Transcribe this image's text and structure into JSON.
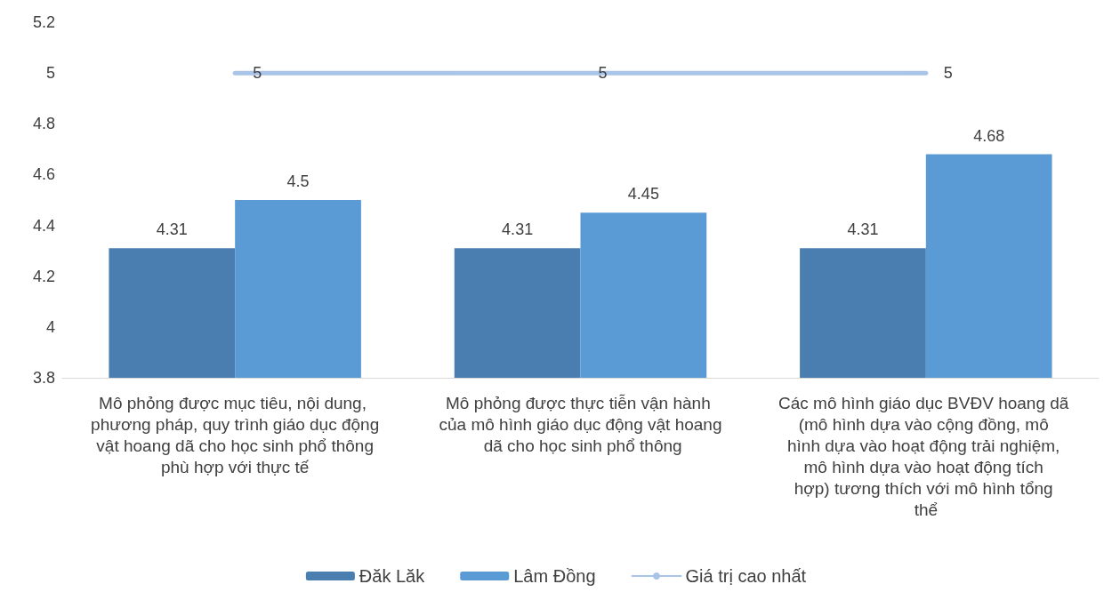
{
  "chart_data": {
    "type": "bar",
    "categories": [
      "Mô phỏng được mục tiêu, nội dung, phương pháp, quy trình giáo dục động vật hoang dã cho học sinh phổ thông phù hợp với thực tế",
      "Mô phỏng được thực tiễn vận hành của mô hình giáo dục động vật hoang dã cho học sinh phổ thông",
      "Các mô hình giáo dục BVĐV hoang dã (mô hình dựa vào cộng đồng, mô hình dựa vào hoạt động trải nghiệm, mô hình dựa vào hoạt động tích hợp) tương thích với mô hình tổng thể"
    ],
    "series": [
      {
        "name": "Đăk Lăk",
        "color": "#4a7eb0",
        "values": [
          4.31,
          4.31,
          4.31
        ]
      },
      {
        "name": "Lâm Đồng",
        "color": "#5b9bd5",
        "values": [
          4.5,
          4.45,
          4.68
        ]
      },
      {
        "name": "Giá trị cao nhất",
        "type": "line",
        "color": "#a9c4e6",
        "values": [
          5,
          5,
          5
        ],
        "marker": "none",
        "line_style": "solid"
      }
    ],
    "ylim": [
      3.8,
      5.2
    ],
    "yticks": [
      3.8,
      4,
      4.2,
      4.4,
      4.6,
      4.8,
      5,
      5.2
    ],
    "grid": false,
    "legend": "bottom",
    "data_labels": true
  }
}
